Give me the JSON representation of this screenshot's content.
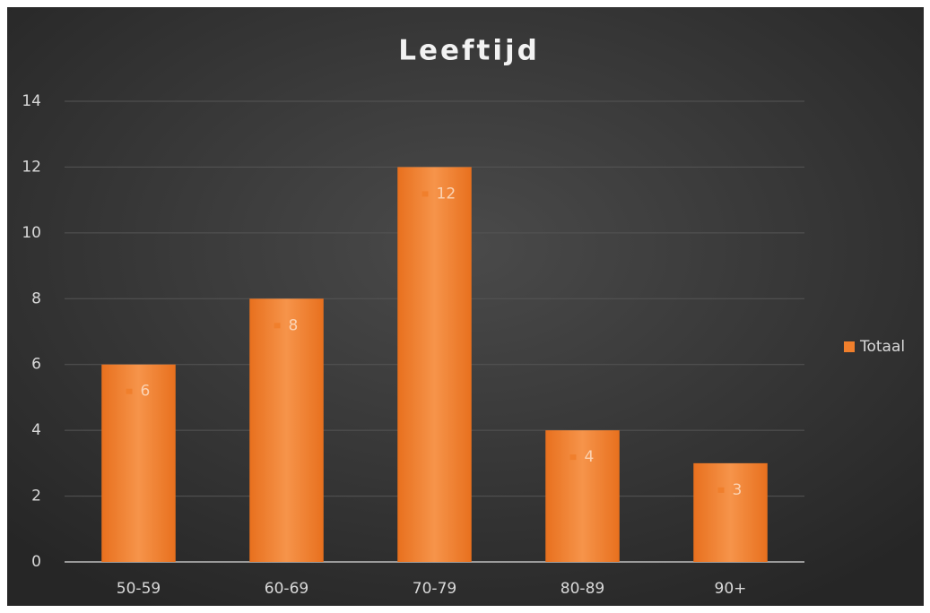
{
  "chart_data": {
    "type": "bar",
    "title": "Leeftijd",
    "categories": [
      "50-59",
      "60-69",
      "70-79",
      "80-89",
      "90+"
    ],
    "series": [
      {
        "name": "Totaal",
        "color": "#f07f2c",
        "values": [
          6,
          8,
          12,
          4,
          3
        ]
      }
    ],
    "ylim": [
      0,
      14
    ],
    "yticks": [
      0,
      2,
      4,
      6,
      8,
      10,
      12,
      14
    ],
    "grid": true,
    "legend": "right"
  }
}
